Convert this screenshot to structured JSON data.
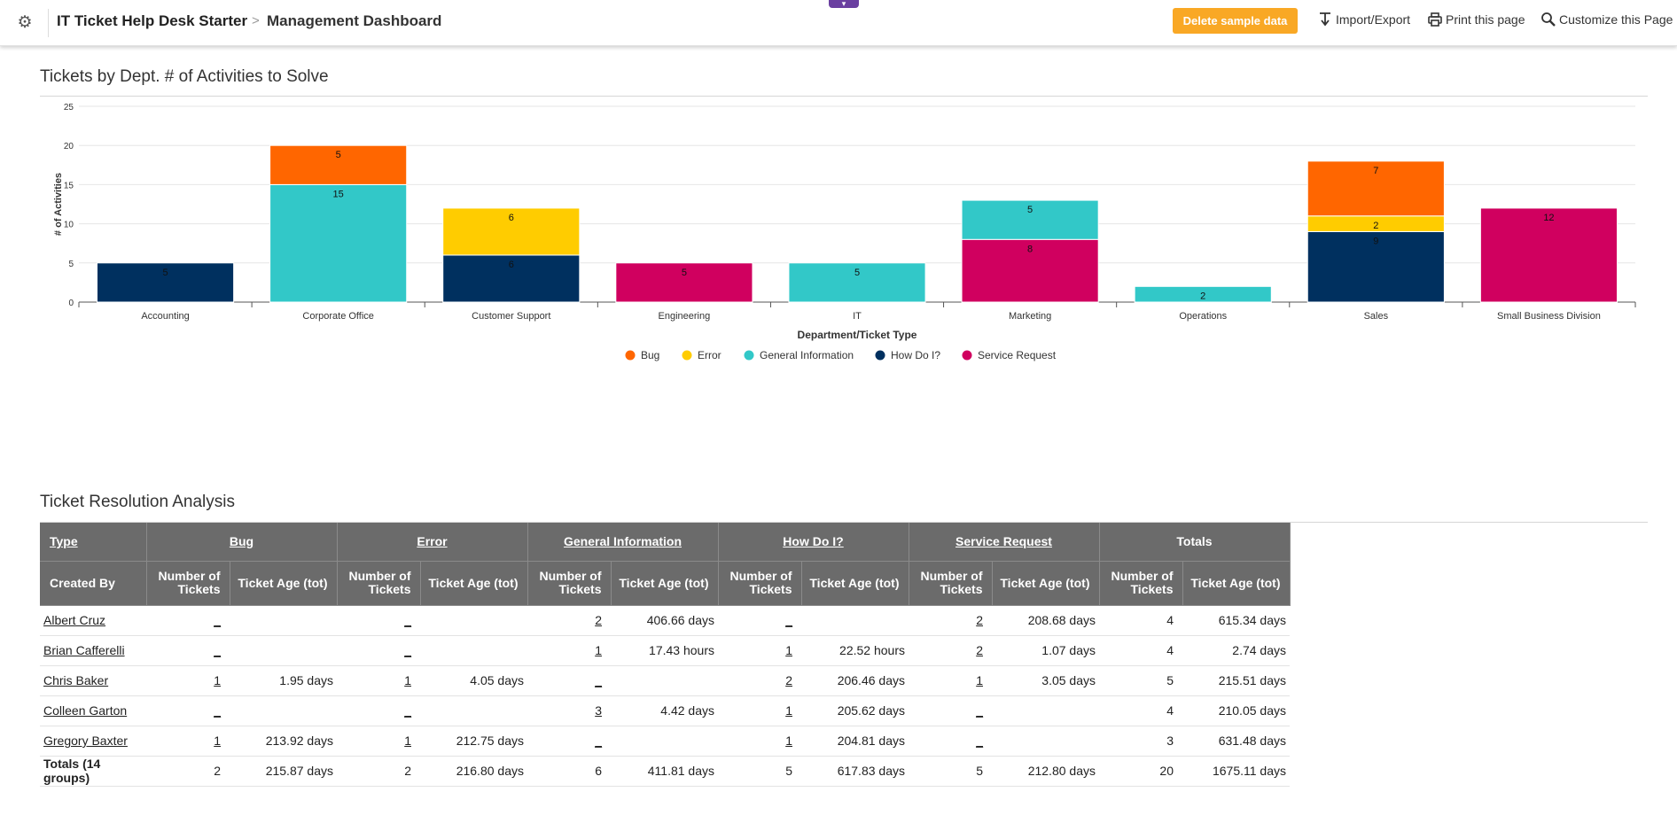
{
  "header": {
    "app_title": "IT Ticket Help Desk Starter",
    "separator": ">",
    "page_title": "Management Dashboard",
    "delete_button": "Delete sample data",
    "import_export": "Import/Export",
    "print": "Print this page",
    "customize": "Customize this Page"
  },
  "chart_section": {
    "title": "Tickets by Dept. # of Activities to Solve"
  },
  "chart_data": {
    "type": "bar",
    "stacked": true,
    "title": "Tickets by Dept. # of Activities to Solve",
    "xlabel": "Department/Ticket Type",
    "ylabel": "# of Activities",
    "ylim": [
      0,
      25
    ],
    "yticks": [
      0,
      5,
      10,
      15,
      20,
      25
    ],
    "grid": true,
    "legend_position": "bottom",
    "categories": [
      "Accounting",
      "Corporate Office",
      "Customer Support",
      "Engineering",
      "IT",
      "Marketing",
      "Operations",
      "Sales",
      "Small Business Division"
    ],
    "series": [
      {
        "name": "How Do I?",
        "color": "#00305f",
        "values": [
          5,
          0,
          6,
          0,
          0,
          0,
          0,
          9,
          0
        ]
      },
      {
        "name": "General Information",
        "color": "#32c8c8",
        "values": [
          0,
          15,
          0,
          0,
          5,
          5,
          2,
          0,
          0
        ]
      },
      {
        "name": "Service Request",
        "color": "#d0005f",
        "values": [
          0,
          0,
          0,
          5,
          0,
          8,
          0,
          0,
          12
        ]
      },
      {
        "name": "Error",
        "color": "#ffcc00",
        "values": [
          0,
          0,
          6,
          0,
          0,
          0,
          0,
          2,
          0
        ]
      },
      {
        "name": "Bug",
        "color": "#ff6600",
        "values": [
          0,
          5,
          0,
          0,
          0,
          0,
          0,
          7,
          0
        ]
      }
    ],
    "stack_order": [
      "How Do I?",
      "Service Request",
      "General Information",
      "Error",
      "Bug"
    ],
    "legend_order": [
      "Bug",
      "Error",
      "General Information",
      "How Do I?",
      "Service Request"
    ]
  },
  "table_section": {
    "title": "Ticket Resolution Analysis"
  },
  "table": {
    "type_label": "Type",
    "created_by_label": "Created By",
    "groups": [
      "Bug",
      "Error",
      "General Information",
      "How Do I?",
      "Service Request"
    ],
    "totals_label": "Totals",
    "num_tickets_label": "Number of Tickets",
    "ticket_age_label": "Ticket Age (tot)",
    "rows": [
      {
        "name": "Albert Cruz",
        "cells": [
          [
            "_",
            ""
          ],
          [
            "_",
            ""
          ],
          [
            "2",
            "406.66 days"
          ],
          [
            "_",
            ""
          ],
          [
            "2",
            "208.68 days"
          ]
        ],
        "total_n": "4",
        "total_age": "615.34 days"
      },
      {
        "name": "Brian Cafferelli",
        "cells": [
          [
            "_",
            ""
          ],
          [
            "_",
            ""
          ],
          [
            "1",
            "17.43 hours"
          ],
          [
            "1",
            "22.52 hours"
          ],
          [
            "2",
            "1.07 days"
          ]
        ],
        "total_n": "4",
        "total_age": "2.74 days"
      },
      {
        "name": "Chris Baker",
        "cells": [
          [
            "1",
            "1.95 days"
          ],
          [
            "1",
            "4.05 days"
          ],
          [
            "_",
            ""
          ],
          [
            "2",
            "206.46 days"
          ],
          [
            "1",
            "3.05 days"
          ]
        ],
        "total_n": "5",
        "total_age": "215.51 days"
      },
      {
        "name": "Colleen Garton",
        "cells": [
          [
            "_",
            ""
          ],
          [
            "_",
            ""
          ],
          [
            "3",
            "4.42 days"
          ],
          [
            "1",
            "205.62 days"
          ],
          [
            "_",
            ""
          ]
        ],
        "total_n": "4",
        "total_age": "210.05 days"
      },
      {
        "name": "Gregory Baxter",
        "cells": [
          [
            "1",
            "213.92 days"
          ],
          [
            "1",
            "212.75 days"
          ],
          [
            "_",
            ""
          ],
          [
            "1",
            "204.81 days"
          ],
          [
            "_",
            ""
          ]
        ],
        "total_n": "3",
        "total_age": "631.48 days"
      }
    ],
    "totals_row": {
      "name": "Totals (14 groups)",
      "cells": [
        [
          "2",
          "215.87 days"
        ],
        [
          "2",
          "216.80 days"
        ],
        [
          "6",
          "411.81 days"
        ],
        [
          "5",
          "617.83 days"
        ],
        [
          "5",
          "212.80 days"
        ]
      ],
      "total_n": "20",
      "total_age": "1675.11 days"
    }
  }
}
